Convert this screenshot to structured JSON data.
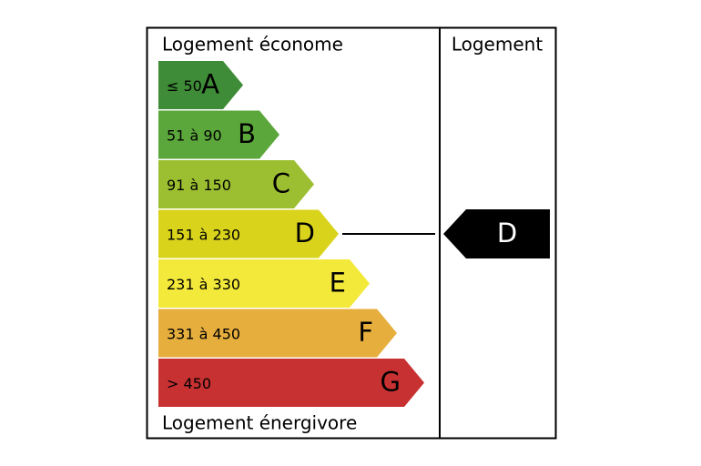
{
  "header": {
    "title": "Logement économe",
    "column": "Logement"
  },
  "footer": {
    "title": "Logement énergivore"
  },
  "rows": [
    {
      "range": "≤ 50",
      "letter": "A",
      "color": "#3e8c37"
    },
    {
      "range": "51 à 90",
      "letter": "B",
      "color": "#5ba73b"
    },
    {
      "range": "91 à 150",
      "letter": "C",
      "color": "#9cbf31"
    },
    {
      "range": "151 à 230",
      "letter": "D",
      "color": "#d9d41b"
    },
    {
      "range": "231 à 330",
      "letter": "E",
      "color": "#f3e93a"
    },
    {
      "range": "331 à 450",
      "letter": "F",
      "color": "#e6ae3d"
    },
    {
      "range": "> 450",
      "letter": "G",
      "color": "#c83131"
    }
  ],
  "rating": "D"
}
